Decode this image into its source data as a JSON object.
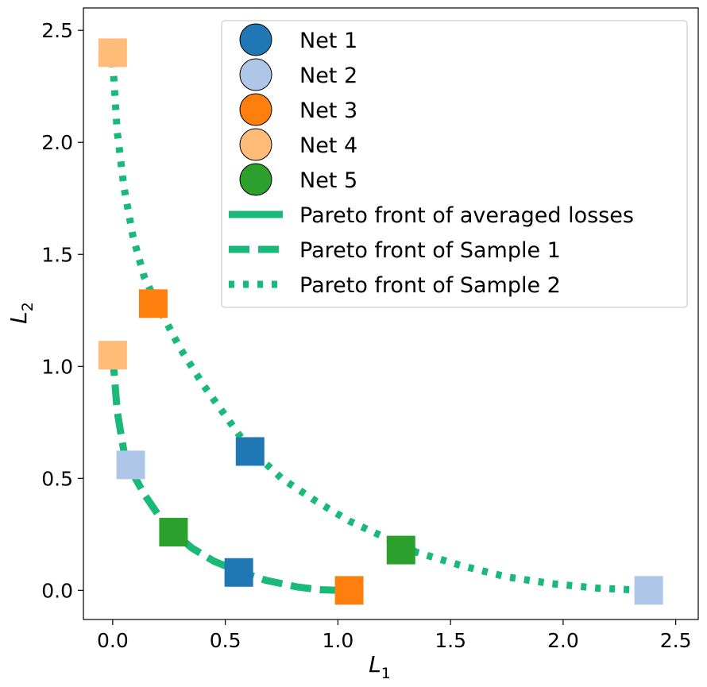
{
  "chart_data": {
    "type": "scatter",
    "xlabel": "L",
    "xlabel_sub": "1",
    "ylabel": "L",
    "ylabel_sub": "2",
    "xlim": [
      -0.13,
      2.6
    ],
    "ylim": [
      -0.13,
      2.6
    ],
    "xticks": [
      "0.0",
      "0.5",
      "1.0",
      "1.5",
      "2.0",
      "2.5"
    ],
    "yticks": [
      "0.0",
      "0.5",
      "1.0",
      "1.5",
      "2.0",
      "2.5"
    ],
    "grid": false,
    "legend_position": "top-right",
    "fronts": [
      {
        "name": "Pareto front of averaged losses",
        "style": "solid",
        "color": "#19b97a",
        "points": []
      },
      {
        "name": "Pareto front of Sample 1",
        "style": "dashed",
        "color": "#19b97a",
        "points": [
          [
            0,
            1.05
          ],
          [
            0.02,
            0.8
          ],
          [
            0.05,
            0.62
          ],
          [
            0.09,
            0.52
          ],
          [
            0.14,
            0.43
          ],
          [
            0.2,
            0.34
          ],
          [
            0.27,
            0.26
          ],
          [
            0.35,
            0.19
          ],
          [
            0.45,
            0.13
          ],
          [
            0.56,
            0.085
          ],
          [
            0.68,
            0.045
          ],
          [
            0.82,
            0.015
          ],
          [
            0.92,
            0.003
          ],
          [
            1.0,
            0
          ]
        ]
      },
      {
        "name": "Pareto front of Sample 2",
        "style": "dotted",
        "color": "#19b97a",
        "points": [
          [
            0,
            2.36
          ],
          [
            0.02,
            2.05
          ],
          [
            0.05,
            1.8
          ],
          [
            0.09,
            1.58
          ],
          [
            0.14,
            1.4
          ],
          [
            0.2,
            1.27
          ],
          [
            0.3,
            1.08
          ],
          [
            0.4,
            0.92
          ],
          [
            0.5,
            0.78
          ],
          [
            0.6,
            0.64
          ],
          [
            0.75,
            0.5
          ],
          [
            0.9,
            0.4
          ],
          [
            1.05,
            0.31
          ],
          [
            1.2,
            0.24
          ],
          [
            1.35,
            0.17
          ],
          [
            1.55,
            0.11
          ],
          [
            1.75,
            0.06
          ],
          [
            1.95,
            0.03
          ],
          [
            2.15,
            0.01
          ],
          [
            2.36,
            0
          ]
        ]
      }
    ],
    "series": [
      {
        "name": "Net 1",
        "color": "#1f77b4",
        "points": [
          [
            0.56,
            0.08
          ],
          [
            0.61,
            0.62
          ]
        ]
      },
      {
        "name": "Net 2",
        "color": "#aec7e8",
        "points": [
          [
            0.08,
            0.56
          ],
          [
            2.38,
            0.0
          ]
        ]
      },
      {
        "name": "Net 3",
        "color": "#ff7f0e",
        "points": [
          [
            1.05,
            0.0
          ],
          [
            0.18,
            1.28
          ]
        ]
      },
      {
        "name": "Net 4",
        "color": "#ffbb78",
        "points": [
          [
            0.0,
            1.05
          ],
          [
            0.0,
            2.4
          ]
        ]
      },
      {
        "name": "Net 5",
        "color": "#2ca02c",
        "points": [
          [
            0.27,
            0.26
          ],
          [
            1.28,
            0.18
          ]
        ]
      }
    ]
  }
}
